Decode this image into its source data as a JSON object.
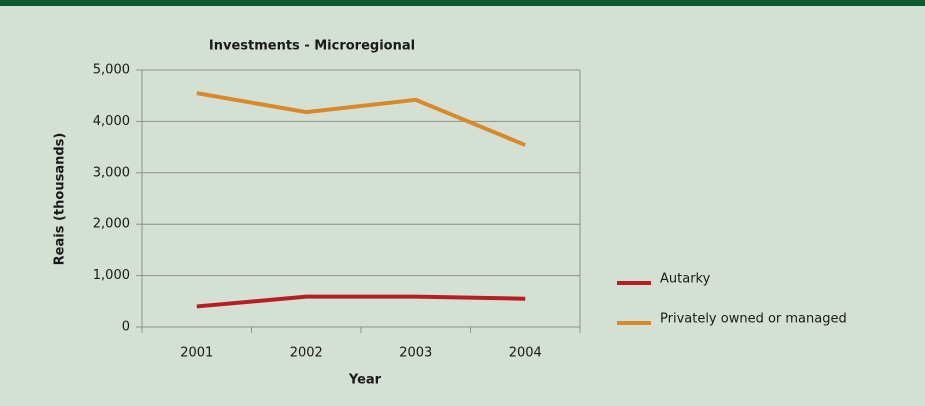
{
  "chart_data": {
    "type": "line",
    "title": "Investments - Microregional",
    "x_label": "Year",
    "y_label": "Reais (thousands)",
    "categories": [
      "2001",
      "2002",
      "2003",
      "2004"
    ],
    "series": [
      {
        "name": "Autarky",
        "color": "#b51f24",
        "values": [
          400,
          590,
          590,
          550
        ]
      },
      {
        "name": "Privately owned or managed",
        "color": "#d8892a",
        "values": [
          4550,
          4180,
          4420,
          3540
        ]
      }
    ],
    "ylim": [
      0,
      5000
    ],
    "yticks": [
      0,
      {
        "value": 1000,
        "label": "1,000"
      },
      {
        "value": 2000,
        "label": "2,000"
      },
      {
        "value": 3000,
        "label": "3,000"
      },
      {
        "value": 4000,
        "label": "4,000"
      },
      {
        "value": 5000,
        "label": "5,000"
      }
    ],
    "grid": true,
    "legend": "right"
  }
}
